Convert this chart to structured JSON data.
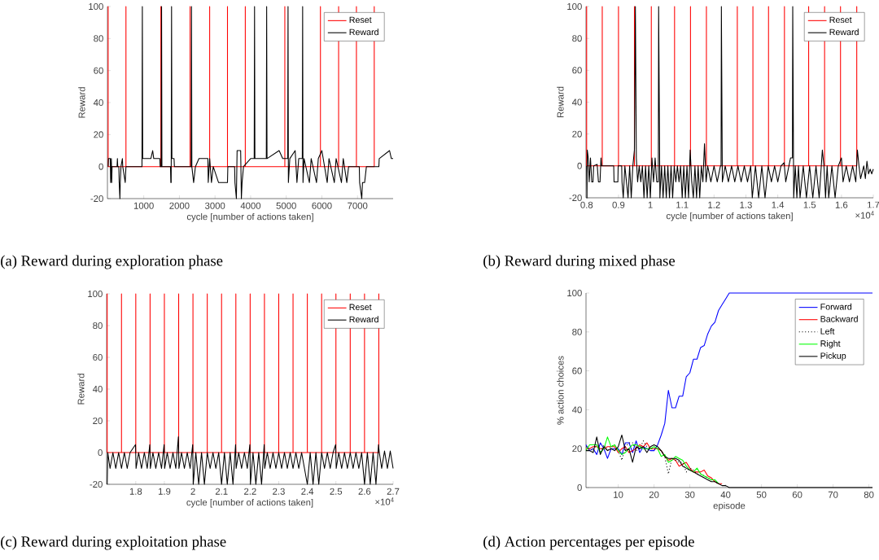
{
  "chart_data": [
    {
      "type": "line",
      "xlabel": "cycle [number of actions taken]",
      "ylabel": "Reward",
      "xlim": [
        -20,
        8000
      ],
      "ylim": [
        -20,
        100
      ],
      "xticks": [
        1000,
        2000,
        3000,
        4000,
        5000,
        6000,
        7000
      ],
      "yticks": [
        -20,
        0,
        20,
        40,
        60,
        80,
        100
      ],
      "legend": "top right",
      "annotations": [
        "(a) Reward during exploration phase"
      ],
      "series": [
        {
          "name": "Reset",
          "color": "#ff0000",
          "x": [
            0,
            0,
            0,
            500,
            500,
            500,
            1480,
            1480,
            1480,
            2300,
            2300,
            2300,
            2850,
            2850,
            2850,
            3350,
            3350,
            3350,
            3850,
            3850,
            3850,
            4960,
            4960,
            4960,
            5960,
            5960,
            5960,
            6470,
            6470,
            6470,
            6970,
            6970,
            6970,
            7470,
            7470,
            7470
          ],
          "values": [
            0,
            100,
            0,
            0,
            100,
            0,
            0,
            100,
            0,
            0,
            100,
            0,
            0,
            100,
            0,
            0,
            100,
            0,
            0,
            100,
            0,
            0,
            100,
            0,
            0,
            100,
            0,
            0,
            100,
            0,
            0,
            100,
            0,
            0,
            100,
            0
          ]
        },
        {
          "name": "Reward",
          "color": "#000000",
          "x": [
            0,
            10,
            60,
            70,
            90,
            100,
            110,
            250,
            260,
            270,
            300,
            310,
            330,
            340,
            360,
            400,
            410,
            480,
            500,
            950,
            960,
            970,
            1200,
            1250,
            1280,
            1450,
            1460,
            1490,
            1500,
            1510,
            1750,
            1760,
            1770,
            1780,
            1790,
            1850,
            1860,
            2330,
            2340,
            2350,
            2400,
            2450,
            2550,
            2800,
            2810,
            2850,
            2900,
            2950,
            3100,
            3350,
            3360,
            3550,
            3560,
            3600,
            3620,
            3720,
            3740,
            3760,
            3800,
            4000,
            4100,
            4110,
            4120,
            4440,
            4450,
            4460,
            4800,
            4900,
            5040,
            5050,
            5060,
            5100,
            5250,
            5300,
            5350,
            5450,
            5460,
            5470,
            5500,
            5650,
            5700,
            5850,
            5900,
            6000,
            6150,
            6200,
            6350,
            6400,
            6550,
            6600,
            6700,
            6750,
            7050,
            7060,
            7120,
            7140,
            7200,
            7250,
            7600,
            7610,
            7900,
            7950,
            8000
          ],
          "values": [
            0,
            5,
            5,
            -10,
            5,
            -10,
            0,
            0,
            5,
            0,
            0,
            -10,
            -20,
            -10,
            0,
            5,
            0,
            -10,
            0,
            0,
            100,
            5,
            5,
            10,
            5,
            5,
            0,
            0,
            100,
            0,
            0,
            -10,
            -10,
            100,
            5,
            5,
            0,
            0,
            100,
            0,
            -10,
            0,
            5,
            5,
            -10,
            5,
            -10,
            0,
            -10,
            -10,
            0,
            0,
            -10,
            -20,
            10,
            10,
            -20,
            -10,
            0,
            5,
            5,
            100,
            5,
            5,
            100,
            5,
            10,
            5,
            5,
            100,
            -10,
            5,
            10,
            -10,
            5,
            5,
            100,
            -10,
            5,
            -10,
            5,
            -10,
            5,
            10,
            -10,
            5,
            -10,
            5,
            -10,
            5,
            -10,
            0,
            0,
            -10,
            -20,
            -10,
            -10,
            0,
            0,
            5,
            10,
            5,
            5
          ]
        }
      ]
    },
    {
      "type": "line",
      "xlabel": "cycle [number of actions taken]",
      "ylabel": "Reward",
      "xlim": [
        0.798,
        1.7
      ],
      "ylim": [
        -20,
        100
      ],
      "xticks": [
        0.8,
        0.9,
        1,
        1.1,
        1.2,
        1.3,
        1.4,
        1.5,
        1.6,
        1.7
      ],
      "yticks": [
        -20,
        0,
        20,
        40,
        60,
        80,
        100
      ],
      "legend": "top right",
      "annotations": [
        "(b) Reward during mixed phase",
        "×10$^{4}$"
      ],
      "series": [
        {
          "name": "Reset",
          "color": "#ff0000",
          "x": [
            0.8,
            0.8,
            0.8,
            0.849,
            0.849,
            0.849,
            0.9,
            0.9,
            0.9,
            0.95,
            0.95,
            0.95,
            1.003,
            1.003,
            1.003,
            1.076,
            1.076,
            1.076,
            1.126,
            1.126,
            1.126,
            1.176,
            1.176,
            1.176,
            1.273,
            1.273,
            1.273,
            1.322,
            1.322,
            1.322,
            1.371,
            1.371,
            1.371,
            1.421,
            1.421,
            1.421,
            1.497,
            1.497,
            1.497,
            1.547,
            1.547,
            1.547,
            1.597,
            1.597,
            1.597,
            1.648,
            1.648,
            1.648
          ],
          "values": [
            0,
            100,
            0,
            0,
            100,
            0,
            0,
            100,
            0,
            0,
            100,
            0,
            0,
            100,
            0,
            0,
            100,
            0,
            0,
            100,
            0,
            0,
            100,
            0,
            0,
            100,
            0,
            0,
            100,
            0,
            0,
            100,
            0,
            0,
            100,
            0,
            0,
            100,
            0,
            0,
            100,
            0,
            0,
            100,
            0,
            0,
            100,
            0
          ]
        },
        {
          "name": "Reward",
          "color": "#000000",
          "x": [
            0.8,
            0.801,
            0.802,
            0.805,
            0.808,
            0.812,
            0.816,
            0.82,
            0.822,
            0.833,
            0.837,
            0.842,
            0.845,
            0.847,
            0.885,
            0.886,
            0.898,
            0.899,
            0.91,
            0.911,
            0.915,
            0.92,
            0.925,
            0.93,
            0.935,
            0.94,
            0.945,
            0.95,
            0.953,
            0.956,
            0.96,
            0.965,
            0.97,
            0.975,
            0.98,
            0.985,
            0.99,
            0.995,
            1.0,
            1.005,
            1.01,
            1.015,
            1.02,
            1.025,
            1.026,
            1.03,
            1.035,
            1.04,
            1.045,
            1.05,
            1.055,
            1.06,
            1.065,
            1.07,
            1.075,
            1.08,
            1.085,
            1.09,
            1.095,
            1.1,
            1.105,
            1.11,
            1.115,
            1.12,
            1.125,
            1.13,
            1.135,
            1.14,
            1.145,
            1.15,
            1.155,
            1.16,
            1.165,
            1.17,
            1.175,
            1.18,
            1.19,
            1.2,
            1.21,
            1.22,
            1.222,
            1.223,
            1.226,
            1.235,
            1.245,
            1.255,
            1.265,
            1.275,
            1.285,
            1.295,
            1.305,
            1.315,
            1.32,
            1.33,
            1.34,
            1.35,
            1.36,
            1.37,
            1.38,
            1.39,
            1.4,
            1.41,
            1.42,
            1.425,
            1.435,
            1.44,
            1.446,
            1.447,
            1.45,
            1.455,
            1.46,
            1.465,
            1.47,
            1.48,
            1.49,
            1.5,
            1.51,
            1.52,
            1.53,
            1.54,
            1.545,
            1.55,
            1.555,
            1.56,
            1.57,
            1.58,
            1.59,
            1.6,
            1.605,
            1.615,
            1.625,
            1.635,
            1.645,
            1.65,
            1.655,
            1.66,
            1.67,
            1.675,
            1.68,
            1.685,
            1.69,
            1.695,
            1.7
          ],
          "values": [
            0,
            -20,
            10,
            5,
            -10,
            5,
            -10,
            -10,
            0,
            1,
            -10,
            -10,
            5,
            0,
            0,
            -10,
            -10,
            0,
            0,
            -10,
            -20,
            0,
            -10,
            -20,
            0,
            -20,
            0,
            10,
            100,
            5,
            -10,
            0,
            -10,
            0,
            -20,
            0,
            -20,
            0,
            -20,
            5,
            -10,
            5,
            -10,
            -10,
            100,
            -20,
            0,
            -20,
            0,
            -20,
            0,
            -20,
            0,
            -20,
            0,
            -10,
            0,
            -10,
            0,
            -20,
            0,
            -20,
            0,
            -20,
            10,
            -10,
            -20,
            0,
            -20,
            0,
            -20,
            0,
            -10,
            14,
            -10,
            0,
            -10,
            0,
            -10,
            0,
            0,
            100,
            -10,
            0,
            -10,
            0,
            -10,
            0,
            -10,
            0,
            -10,
            0,
            -20,
            0,
            -20,
            0,
            -20,
            0,
            -10,
            0,
            -10,
            0,
            2,
            -10,
            0,
            5,
            5,
            100,
            -20,
            0,
            -20,
            0,
            -20,
            0,
            -20,
            0,
            -20,
            0,
            -20,
            10,
            0,
            -20,
            0,
            -20,
            0,
            -20,
            0,
            5,
            -10,
            0,
            -10,
            0,
            -10,
            10,
            0,
            -8,
            0,
            -8,
            3,
            -5,
            -2,
            -5,
            -2
          ]
        }
      ]
    },
    {
      "type": "line",
      "xlabel": "cycle [number of actions taken]",
      "ylabel": "Reward",
      "xlim": [
        1.698,
        2.7
      ],
      "ylim": [
        -20,
        100
      ],
      "xticks": [
        1.8,
        1.9,
        2,
        2.1,
        2.2,
        2.3,
        2.4,
        2.5,
        2.6,
        2.7
      ],
      "yticks": [
        -20,
        0,
        20,
        40,
        60,
        80,
        100
      ],
      "legend": "top right",
      "annotations": [
        "(c) Reward during exploitation phase",
        "×10$^{4}$"
      ],
      "series": [
        {
          "name": "Reset",
          "color": "#ff0000",
          "x": [
            1.7,
            1.7,
            1.7,
            1.75,
            1.75,
            1.75,
            1.8,
            1.8,
            1.8,
            1.85,
            1.85,
            1.85,
            1.9,
            1.9,
            1.9,
            1.95,
            1.95,
            1.95,
            2.0,
            2.0,
            2.0,
            2.05,
            2.05,
            2.05,
            2.1,
            2.1,
            2.1,
            2.15,
            2.15,
            2.15,
            2.2,
            2.2,
            2.2,
            2.25,
            2.25,
            2.25,
            2.3,
            2.3,
            2.3,
            2.35,
            2.35,
            2.35,
            2.4,
            2.4,
            2.4,
            2.45,
            2.45,
            2.45,
            2.5,
            2.5,
            2.5,
            2.55,
            2.55,
            2.55,
            2.6,
            2.6,
            2.6,
            2.65,
            2.65,
            2.65
          ],
          "values": [
            0,
            100,
            0,
            0,
            100,
            0,
            0,
            100,
            0,
            0,
            100,
            0,
            0,
            100,
            0,
            0,
            100,
            0,
            0,
            100,
            0,
            0,
            100,
            0,
            0,
            100,
            0,
            0,
            100,
            0,
            0,
            100,
            0,
            0,
            100,
            0,
            0,
            100,
            0,
            0,
            100,
            0,
            0,
            100,
            0,
            0,
            100,
            0,
            0,
            100,
            0,
            0,
            100,
            0,
            0,
            100,
            0,
            0,
            100,
            0
          ]
        },
        {
          "name": "Reward",
          "color": "#000000",
          "x": [
            1.7,
            1.702,
            1.71,
            1.72,
            1.73,
            1.74,
            1.75,
            1.76,
            1.77,
            1.78,
            1.799,
            1.801,
            1.81,
            1.82,
            1.83,
            1.84,
            1.849,
            1.851,
            1.86,
            1.87,
            1.88,
            1.89,
            1.899,
            1.901,
            1.91,
            1.92,
            1.93,
            1.94,
            1.949,
            1.951,
            1.96,
            1.97,
            1.98,
            1.99,
            1.999,
            2.001,
            2.01,
            2.02,
            2.03,
            2.04,
            2.05,
            2.06,
            2.07,
            2.08,
            2.09,
            2.1,
            2.11,
            2.12,
            2.13,
            2.14,
            2.149,
            2.151,
            2.16,
            2.17,
            2.18,
            2.19,
            2.199,
            2.201,
            2.21,
            2.22,
            2.23,
            2.24,
            2.249,
            2.251,
            2.26,
            2.27,
            2.28,
            2.29,
            2.3,
            2.31,
            2.32,
            2.33,
            2.34,
            2.35,
            2.36,
            2.37,
            2.38,
            2.39,
            2.4,
            2.41,
            2.42,
            2.43,
            2.44,
            2.45,
            2.46,
            2.47,
            2.48,
            2.49,
            2.499,
            2.501,
            2.51,
            2.52,
            2.53,
            2.54,
            2.55,
            2.56,
            2.57,
            2.58,
            2.59,
            2.6,
            2.61,
            2.62,
            2.63,
            2.64,
            2.649,
            2.651,
            2.66,
            2.67,
            2.68,
            2.69,
            2.7
          ],
          "values": [
            -20,
            0,
            -10,
            0,
            -10,
            0,
            -10,
            0,
            -10,
            0,
            5,
            -10,
            0,
            -10,
            0,
            -10,
            5,
            -10,
            0,
            -10,
            0,
            -10,
            5,
            -10,
            0,
            -10,
            0,
            -10,
            10,
            -10,
            0,
            -10,
            0,
            -10,
            5,
            -20,
            0,
            -20,
            0,
            -20,
            0,
            -10,
            0,
            -10,
            0,
            -20,
            0,
            -20,
            0,
            -20,
            5,
            -10,
            0,
            -10,
            0,
            -10,
            5,
            -20,
            0,
            -20,
            0,
            -20,
            5,
            -10,
            0,
            -10,
            0,
            -10,
            0,
            -10,
            0,
            -10,
            0,
            -10,
            0,
            -10,
            0,
            -10,
            -20,
            0,
            -20,
            0,
            -20,
            0,
            -10,
            0,
            -10,
            0,
            5,
            -10,
            0,
            -10,
            0,
            -10,
            0,
            -10,
            0,
            -10,
            0,
            -20,
            0,
            -20,
            0,
            -20,
            5,
            1,
            -10,
            1,
            -10,
            1,
            -10
          ]
        }
      ]
    },
    {
      "type": "line",
      "xlabel": "episode",
      "ylabel": "% action choices",
      "xlim": [
        1,
        81
      ],
      "ylim": [
        0,
        100
      ],
      "xticks": [
        10,
        20,
        30,
        40,
        50,
        60,
        70,
        80
      ],
      "yticks": [
        0,
        20,
        40,
        60,
        80,
        100
      ],
      "legend": "top right",
      "annotations": [
        "(d) Action percentages per episode"
      ],
      "x": [
        1,
        2,
        3,
        4,
        5,
        6,
        7,
        8,
        9,
        10,
        11,
        12,
        13,
        14,
        15,
        16,
        17,
        18,
        19,
        20,
        21,
        22,
        23,
        24,
        25,
        26,
        27,
        28,
        29,
        30,
        31,
        32,
        33,
        34,
        35,
        36,
        37,
        38,
        39,
        40,
        41,
        81
      ],
      "series": [
        {
          "name": "Forward",
          "color": "#0000ff",
          "values": [
            22,
            19,
            20,
            17,
            23,
            20,
            15,
            20,
            20,
            20,
            17,
            23,
            23,
            18,
            24,
            18,
            21,
            20,
            19,
            19,
            22,
            27,
            33,
            50,
            41,
            41,
            47,
            47,
            57,
            59,
            66,
            66,
            72,
            73,
            79,
            83,
            85,
            91,
            94,
            97,
            100,
            100
          ]
        },
        {
          "name": "Backward",
          "color": "#ff0000",
          "values": [
            20,
            20,
            21,
            21,
            20,
            20,
            21,
            21,
            21,
            18,
            20,
            21,
            18,
            19,
            20,
            22,
            21,
            23,
            20,
            20,
            20,
            19,
            16,
            14,
            15,
            14,
            11,
            12,
            13,
            10,
            8,
            8,
            8,
            9,
            6,
            5,
            3,
            2,
            2,
            null,
            null,
            null
          ]
        },
        {
          "name": "Left",
          "color": "#000000",
          "line_style": "dotted",
          "values": [
            21,
            20,
            19,
            22,
            18,
            22,
            19,
            21,
            22,
            19,
            14,
            21,
            23,
            23,
            19,
            20,
            24,
            21,
            20,
            20,
            20,
            19,
            16,
            7,
            15,
            14,
            13,
            13,
            8,
            10,
            9,
            7,
            7,
            6,
            5,
            4,
            3,
            2,
            null,
            null,
            null,
            null
          ]
        },
        {
          "name": "Right",
          "color": "#00ff00",
          "values": [
            19,
            22,
            22,
            22,
            18,
            20,
            26,
            21,
            22,
            19,
            17,
            18,
            20,
            22,
            22,
            21,
            20,
            20,
            20,
            21,
            20,
            16,
            17,
            13,
            14,
            16,
            15,
            14,
            11,
            9,
            8,
            10,
            7,
            6,
            5,
            4,
            4,
            2,
            null,
            null,
            null,
            null
          ]
        },
        {
          "name": "Pickup",
          "color": "#000000",
          "values": [
            19,
            19,
            18,
            26,
            17,
            21,
            19,
            20,
            19,
            21,
            27,
            19,
            20,
            13,
            21,
            20,
            21,
            18,
            21,
            22,
            21,
            19,
            16,
            15,
            15,
            15,
            14,
            11,
            10,
            9,
            8,
            7,
            6,
            5,
            4,
            3,
            3,
            2,
            1,
            1,
            0,
            0
          ]
        }
      ]
    }
  ]
}
